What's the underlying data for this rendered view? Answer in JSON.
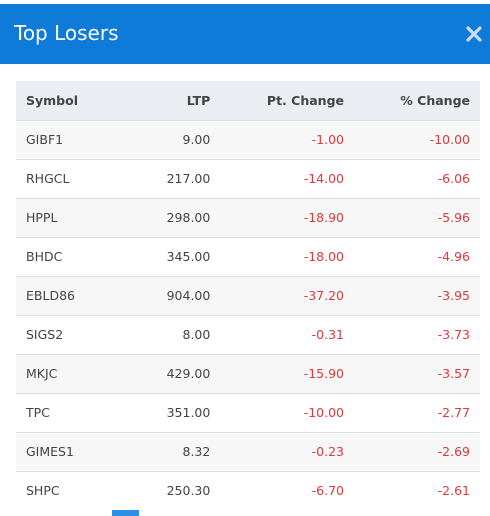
{
  "modal": {
    "title": "Top Losers",
    "close_label": "✕"
  },
  "columns": {
    "symbol": "Symbol",
    "ltp": "LTP",
    "pt_change": "Pt. Change",
    "pct_change": "% Change"
  },
  "rows": [
    {
      "symbol": "GIBF1",
      "ltp": "9.00",
      "pt_change": "-1.00",
      "pct_change": "-10.00"
    },
    {
      "symbol": "RHGCL",
      "ltp": "217.00",
      "pt_change": "-14.00",
      "pct_change": "-6.06"
    },
    {
      "symbol": "HPPL",
      "ltp": "298.00",
      "pt_change": "-18.90",
      "pct_change": "-5.96"
    },
    {
      "symbol": "BHDC",
      "ltp": "345.00",
      "pt_change": "-18.00",
      "pct_change": "-4.96"
    },
    {
      "symbol": "EBLD86",
      "ltp": "904.00",
      "pt_change": "-37.20",
      "pct_change": "-3.95"
    },
    {
      "symbol": "SIGS2",
      "ltp": "8.00",
      "pt_change": "-0.31",
      "pct_change": "-3.73"
    },
    {
      "symbol": "MKJC",
      "ltp": "429.00",
      "pt_change": "-15.90",
      "pct_change": "-3.57"
    },
    {
      "symbol": "TPC",
      "ltp": "351.00",
      "pt_change": "-10.00",
      "pct_change": "-2.77"
    },
    {
      "symbol": "GIMES1",
      "ltp": "8.32",
      "pt_change": "-0.23",
      "pct_change": "-2.69"
    },
    {
      "symbol": "SHPC",
      "ltp": "250.30",
      "pt_change": "-6.70",
      "pct_change": "-2.61"
    }
  ],
  "colors": {
    "header_bg": "#0f7bd9",
    "negative": "#e0383b"
  }
}
